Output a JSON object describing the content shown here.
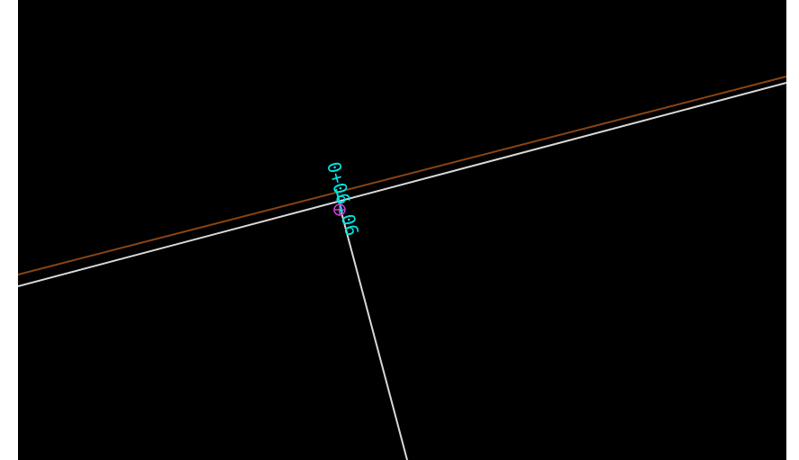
{
  "drawing": {
    "background_color": "#000000",
    "lines": [
      {
        "name": "boundary-line",
        "color": "#8b4513"
      },
      {
        "name": "road-edge-line",
        "color": "#d8d8d8"
      },
      {
        "name": "offset-line",
        "color": "#d8d8d8"
      }
    ],
    "label": {
      "text": "0+06.06",
      "color": "#00e5e5"
    },
    "point_marker": {
      "color": "#d040d0"
    }
  }
}
